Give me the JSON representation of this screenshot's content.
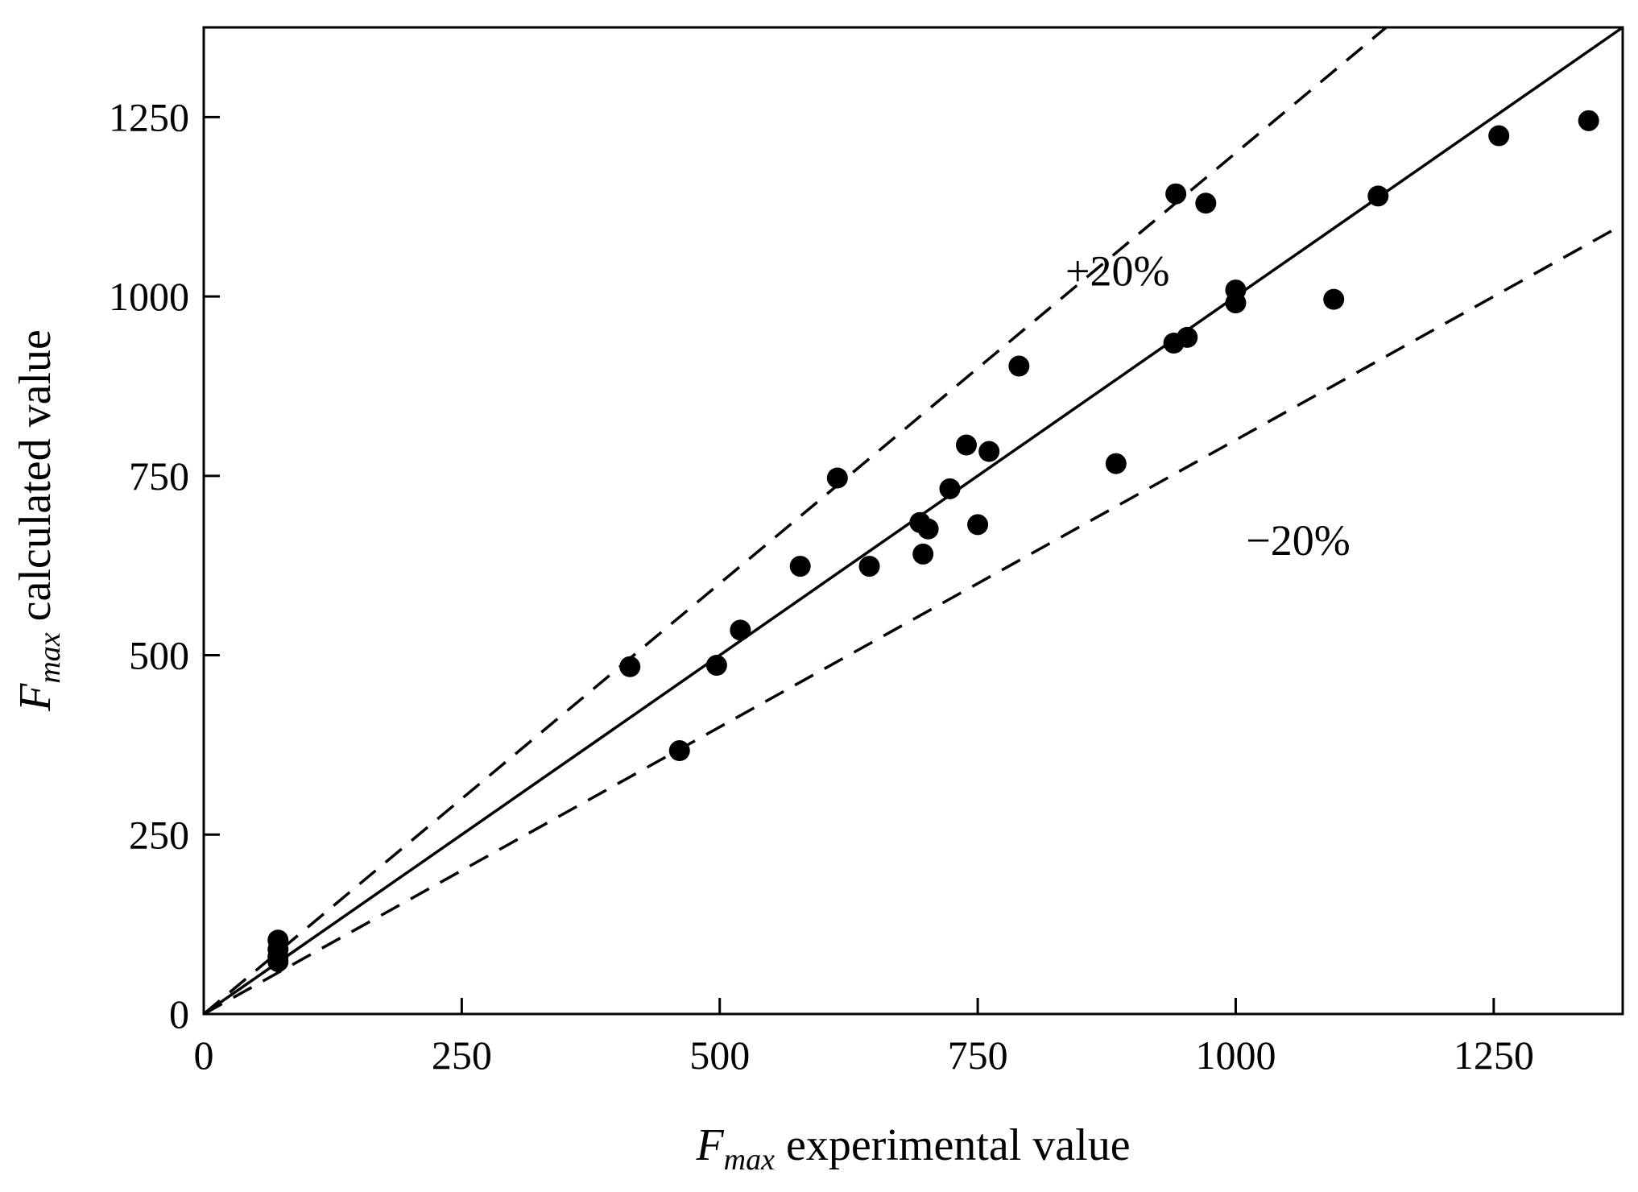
{
  "chart_data": {
    "type": "scatter",
    "title": "",
    "xlabel": {
      "symbol": "F",
      "subscript": "max",
      "text": " experimental value"
    },
    "ylabel": {
      "symbol": "F",
      "subscript": "max",
      "text": " calculated value"
    },
    "xlim": [
      0,
      1375
    ],
    "ylim": [
      0,
      1375
    ],
    "xticks": [
      0,
      250,
      500,
      750,
      1000,
      1250
    ],
    "yticks": [
      0,
      250,
      500,
      750,
      1000,
      1250
    ],
    "xtick_labels": [
      "0",
      "250",
      "500",
      "750",
      "1000",
      "1250"
    ],
    "ytick_labels": [
      "0",
      "250",
      "500",
      "750",
      "1000",
      "1250"
    ],
    "grid": false,
    "series": [
      {
        "name": "data",
        "marker": "filled-circle",
        "color": "#000000",
        "points": [
          [
            72,
            103
          ],
          [
            72,
            90
          ],
          [
            72,
            80
          ],
          [
            72,
            73
          ],
          [
            413,
            484
          ],
          [
            461,
            367
          ],
          [
            497,
            486
          ],
          [
            520,
            535
          ],
          [
            578,
            624
          ],
          [
            614,
            747
          ],
          [
            645,
            624
          ],
          [
            694,
            685
          ],
          [
            697,
            641
          ],
          [
            702,
            676
          ],
          [
            723,
            732
          ],
          [
            739,
            793
          ],
          [
            750,
            682
          ],
          [
            761,
            784
          ],
          [
            790,
            903
          ],
          [
            884,
            767
          ],
          [
            940,
            935
          ],
          [
            942,
            1143
          ],
          [
            953,
            943
          ],
          [
            971,
            1130
          ],
          [
            1000,
            1009
          ],
          [
            1000,
            991
          ],
          [
            1095,
            996
          ],
          [
            1138,
            1140
          ],
          [
            1255,
            1224
          ],
          [
            1342,
            1245
          ]
        ]
      }
    ],
    "reference_lines": [
      {
        "name": "ideal",
        "style": "solid",
        "slope": 1.0,
        "x_range": [
          0,
          1375
        ]
      },
      {
        "name": "+20%",
        "style": "dashed",
        "slope": 1.2,
        "x_range": [
          0,
          1146
        ]
      },
      {
        "name": "-20%",
        "style": "dashed",
        "slope": 0.8,
        "x_range": [
          0,
          1375
        ]
      }
    ],
    "annotations": [
      {
        "text": "+20%",
        "x": 835,
        "y": 1015
      },
      {
        "text": "−20%",
        "x": 1010,
        "y": 640
      }
    ]
  }
}
